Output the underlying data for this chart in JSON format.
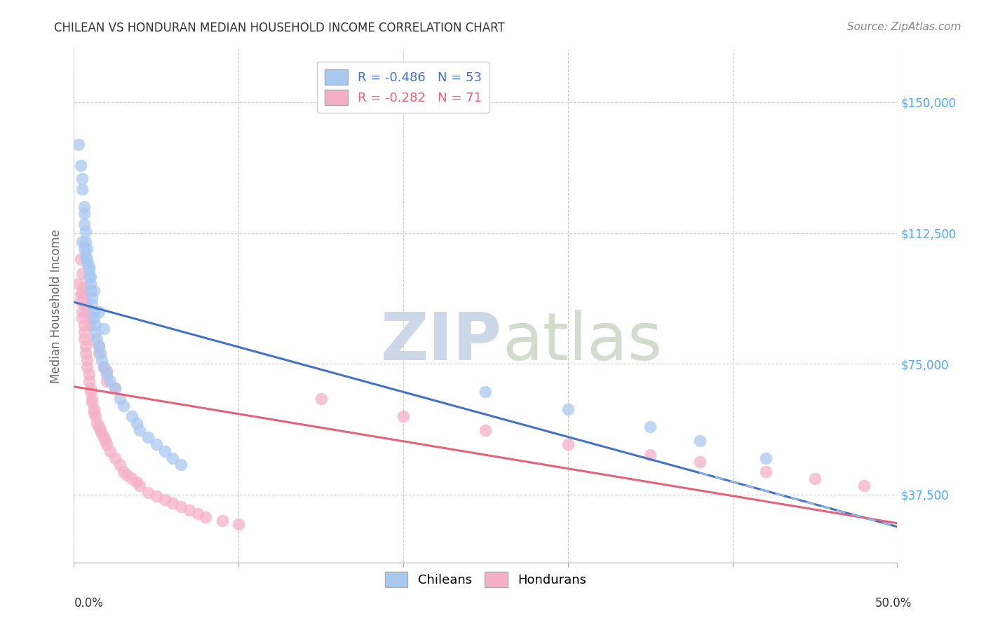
{
  "title": "CHILEAN VS HONDURAN MEDIAN HOUSEHOLD INCOME CORRELATION CHART",
  "source": "Source: ZipAtlas.com",
  "ylabel": "Median Household Income",
  "yticks": [
    37500,
    75000,
    112500,
    150000
  ],
  "ytick_labels": [
    "$37,500",
    "$75,000",
    "$112,500",
    "$150,000"
  ],
  "xmin": 0.0,
  "xmax": 0.5,
  "ymin": 18000,
  "ymax": 165000,
  "legend_r_chilean": "R = -0.486",
  "legend_n_chilean": "N = 53",
  "legend_r_honduran": "R = -0.282",
  "legend_n_honduran": "N = 71",
  "chilean_color": "#a8c8f0",
  "honduran_color": "#f5b0c8",
  "chilean_line_color": "#4472c4",
  "honduran_line_color": "#e8607a",
  "dashed_line_color": "#90b8e0",
  "background_color": "#ffffff",
  "grid_color": "#cccccc",
  "title_color": "#333333",
  "axis_label_color": "#666666",
  "right_tick_color": "#4da6ff",
  "watermark_color": "#ccd8e8",
  "chilean_x": [
    0.003,
    0.004,
    0.005,
    0.005,
    0.006,
    0.006,
    0.006,
    0.007,
    0.007,
    0.008,
    0.008,
    0.009,
    0.009,
    0.01,
    0.01,
    0.011,
    0.011,
    0.012,
    0.012,
    0.013,
    0.013,
    0.014,
    0.015,
    0.016,
    0.017,
    0.018,
    0.02,
    0.022,
    0.025,
    0.028,
    0.03,
    0.035,
    0.038,
    0.04,
    0.045,
    0.05,
    0.055,
    0.06,
    0.065,
    0.005,
    0.006,
    0.007,
    0.008,
    0.009,
    0.01,
    0.012,
    0.015,
    0.018,
    0.25,
    0.3,
    0.35,
    0.38,
    0.42
  ],
  "chilean_y": [
    138000,
    132000,
    128000,
    125000,
    120000,
    118000,
    115000,
    113000,
    110000,
    108000,
    105000,
    103000,
    100000,
    98000,
    96000,
    94000,
    92000,
    90000,
    88000,
    86000,
    84000,
    82000,
    80000,
    78000,
    76000,
    74000,
    72000,
    70000,
    68000,
    65000,
    63000,
    60000,
    58000,
    56000,
    54000,
    52000,
    50000,
    48000,
    46000,
    110000,
    108000,
    106000,
    104000,
    102000,
    100000,
    96000,
    90000,
    85000,
    67000,
    62000,
    57000,
    53000,
    48000
  ],
  "honduran_x": [
    0.003,
    0.004,
    0.004,
    0.005,
    0.005,
    0.006,
    0.006,
    0.006,
    0.007,
    0.007,
    0.008,
    0.008,
    0.009,
    0.009,
    0.01,
    0.01,
    0.011,
    0.011,
    0.012,
    0.012,
    0.013,
    0.014,
    0.015,
    0.016,
    0.017,
    0.018,
    0.019,
    0.02,
    0.022,
    0.025,
    0.028,
    0.03,
    0.032,
    0.035,
    0.038,
    0.04,
    0.045,
    0.05,
    0.055,
    0.06,
    0.065,
    0.07,
    0.075,
    0.08,
    0.09,
    0.1,
    0.005,
    0.006,
    0.007,
    0.008,
    0.01,
    0.012,
    0.015,
    0.018,
    0.02,
    0.15,
    0.2,
    0.25,
    0.3,
    0.35,
    0.38,
    0.42,
    0.45,
    0.48,
    0.004,
    0.005,
    0.006,
    0.01,
    0.015,
    0.02,
    0.025
  ],
  "honduran_y": [
    98000,
    95000,
    93000,
    90000,
    88000,
    86000,
    84000,
    82000,
    80000,
    78000,
    76000,
    74000,
    72000,
    70000,
    68000,
    67000,
    65000,
    64000,
    62000,
    61000,
    60000,
    58000,
    57000,
    56000,
    55000,
    54000,
    53000,
    52000,
    50000,
    48000,
    46000,
    44000,
    43000,
    42000,
    41000,
    40000,
    38000,
    37000,
    36000,
    35000,
    34000,
    33000,
    32000,
    31000,
    30000,
    29000,
    96000,
    94000,
    92000,
    90000,
    86000,
    82000,
    78000,
    74000,
    70000,
    65000,
    60000,
    56000,
    52000,
    49000,
    47000,
    44000,
    42000,
    40000,
    105000,
    101000,
    97000,
    88000,
    80000,
    73000,
    68000
  ]
}
